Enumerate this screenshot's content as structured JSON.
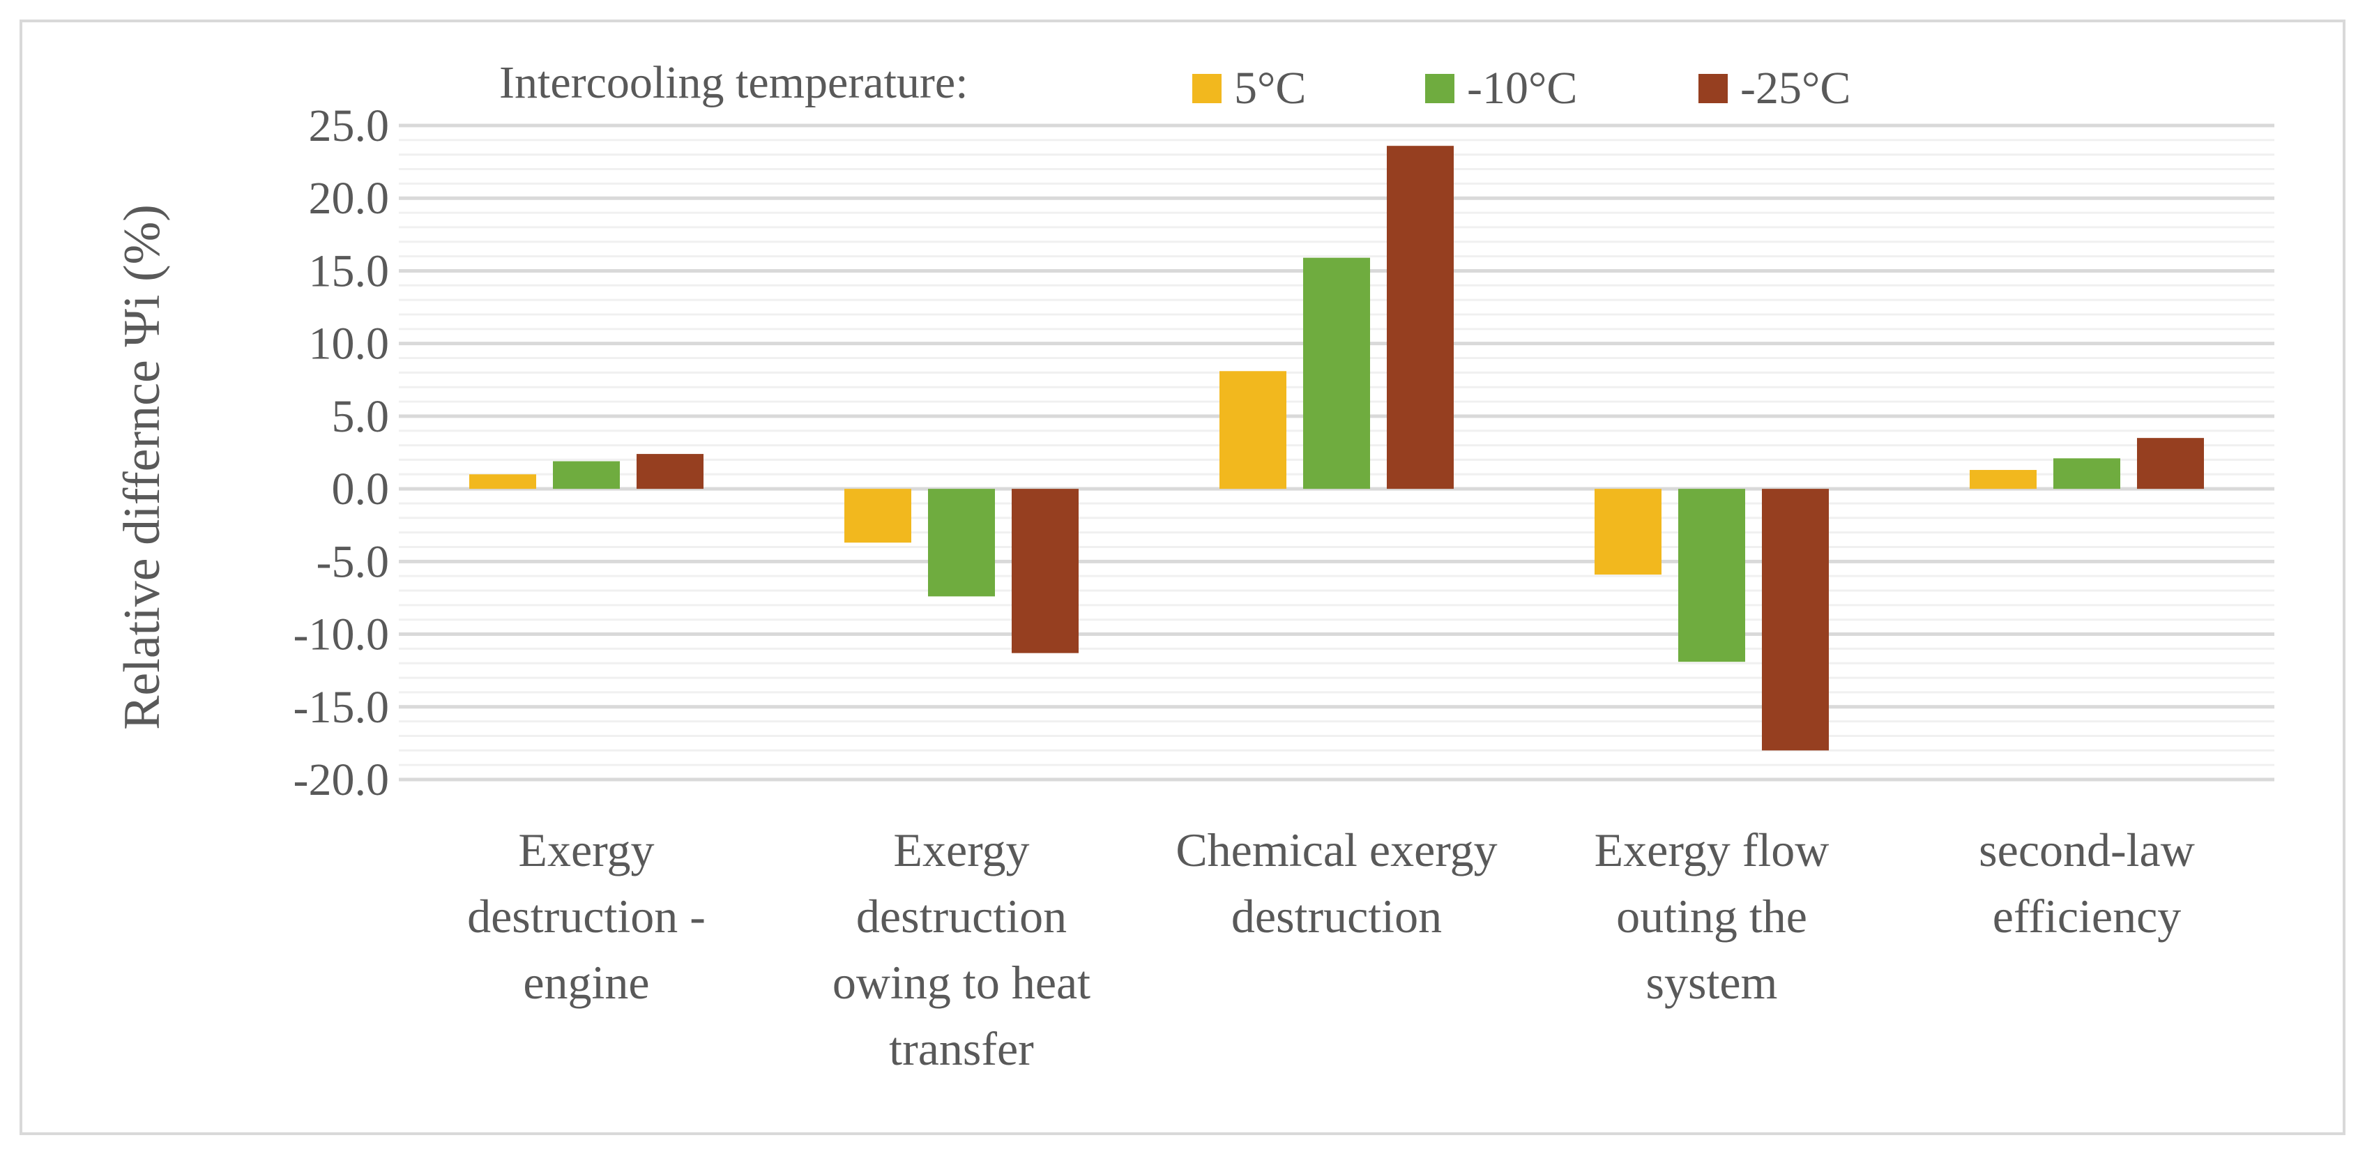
{
  "chart_data": {
    "type": "bar",
    "title": "",
    "legend": {
      "title": "Intercooling temperature:",
      "position": "top"
    },
    "ylabel": "Relative differnce Ψi (%)",
    "xlabel": "",
    "ylim": [
      -20,
      25
    ],
    "y_major_step": 5,
    "y_minor_step": 1,
    "grid": true,
    "y_tick_labels": [
      "25.0",
      "20.0",
      "15.0",
      "10.0",
      "5.0",
      "0.0",
      "-5.0",
      "-10.0",
      "-15.0",
      "-20.0"
    ],
    "categories": [
      [
        "Exergy",
        "destruction -",
        "engine"
      ],
      [
        "Exergy",
        "destruction",
        "owing to heat",
        "transfer"
      ],
      [
        "Chemical exergy",
        "destruction"
      ],
      [
        "Exergy flow",
        "outing the",
        "system"
      ],
      [
        "second-law",
        "efficiency"
      ]
    ],
    "series": [
      {
        "name": "5°C",
        "color": "#f2b81e",
        "values": [
          1.0,
          -3.7,
          8.1,
          -5.9,
          1.3
        ]
      },
      {
        "name": "-10°C",
        "color": "#6fac3f",
        "values": [
          1.9,
          -7.4,
          15.9,
          -11.9,
          2.1
        ]
      },
      {
        "name": "-25°C",
        "color": "#963f20",
        "values": [
          2.4,
          -11.3,
          23.6,
          -18.0,
          3.5
        ]
      }
    ],
    "colors": {
      "grid": "#d9d9d9",
      "minor_grid": "#f0f0f0",
      "text": "#595959",
      "frame": "#d9d9d9"
    }
  }
}
